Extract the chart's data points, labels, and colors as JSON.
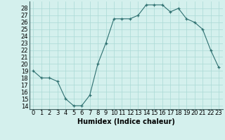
{
  "x": [
    0,
    1,
    2,
    3,
    4,
    5,
    6,
    7,
    8,
    9,
    10,
    11,
    12,
    13,
    14,
    15,
    16,
    17,
    18,
    19,
    20,
    21,
    22,
    23
  ],
  "y": [
    19,
    18,
    18,
    17.5,
    15,
    14,
    14,
    15.5,
    20,
    23,
    26.5,
    26.5,
    26.5,
    27,
    28.5,
    28.5,
    28.5,
    27.5,
    28,
    26.5,
    26,
    25,
    22,
    19.5
  ],
  "xlabel": "Humidex (Indice chaleur)",
  "xlim": [
    -0.5,
    23.5
  ],
  "ylim": [
    13.5,
    29
  ],
  "yticks": [
    14,
    15,
    16,
    17,
    18,
    19,
    20,
    21,
    22,
    23,
    24,
    25,
    26,
    27,
    28
  ],
  "xticks": [
    0,
    1,
    2,
    3,
    4,
    5,
    6,
    7,
    8,
    9,
    10,
    11,
    12,
    13,
    14,
    15,
    16,
    17,
    18,
    19,
    20,
    21,
    22,
    23
  ],
  "line_color": "#2e7070",
  "bg_color": "#d4f0ed",
  "grid_color": "#aadad5",
  "tick_fontsize": 6,
  "label_fontsize": 7
}
